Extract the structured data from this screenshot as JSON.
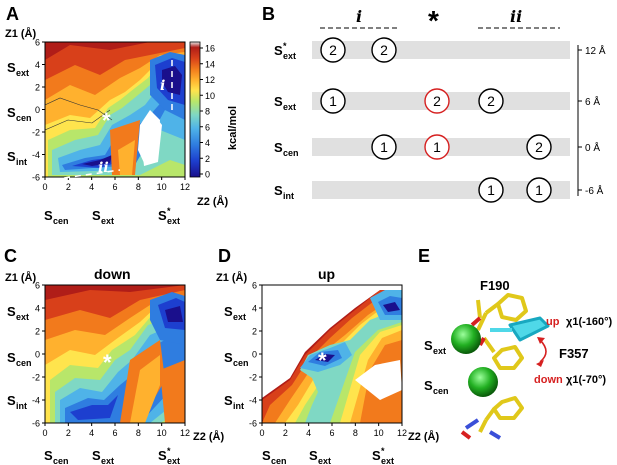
{
  "panels": {
    "A": {
      "letter": "A",
      "y_axis_label": "Z1 (Å)",
      "x_axis_label": "Z2 (Å)",
      "y_ticks": [
        "6",
        "4",
        "2",
        "0",
        "-2",
        "-4",
        "-6"
      ],
      "x_ticks": [
        "0",
        "2",
        "4",
        "6",
        "8",
        "10",
        "12"
      ],
      "site_labels_y": [
        {
          "main": "S",
          "sub": "ext"
        },
        {
          "main": "S",
          "sub": "cen"
        },
        {
          "main": "S",
          "sub": "int"
        }
      ],
      "site_labels_x": [
        {
          "main": "S",
          "sub": "cen",
          "sup": ""
        },
        {
          "main": "S",
          "sub": "ext",
          "sup": ""
        },
        {
          "main": "S",
          "sub": "ext",
          "sup": "*"
        }
      ],
      "markers": {
        "i": "i",
        "ii": "ii",
        "star": "*"
      },
      "colorbar": {
        "ticks": [
          "16",
          "14",
          "12",
          "10",
          "8",
          "6",
          "4",
          "2",
          "0"
        ],
        "unit": "kcal/mol",
        "colors": [
          "#1a0f8c",
          "#1d3fcf",
          "#2f7de0",
          "#4fb3e8",
          "#7fd8c4",
          "#b8e66a",
          "#ffe44d",
          "#ffb12e",
          "#f27a1c",
          "#d8401a",
          "#b01d18",
          "#e0e0e0"
        ]
      }
    },
    "B": {
      "letter": "B",
      "col_labels": {
        "i": "i",
        "star": "*",
        "ii": "ii"
      },
      "rows": [
        {
          "main": "S",
          "sub": "ext",
          "sup": "*",
          "scale": "12 Å"
        },
        {
          "main": "S",
          "sub": "ext",
          "sup": "",
          "scale": "6 Å"
        },
        {
          "main": "S",
          "sub": "cen",
          "sup": "",
          "scale": "0 Å"
        },
        {
          "main": "S",
          "sub": "int",
          "sup": "",
          "scale": "-6 Å"
        }
      ],
      "ions": [
        {
          "row": 0,
          "col": 0,
          "label": "2",
          "color": "#000000"
        },
        {
          "row": 0,
          "col": 1,
          "label": "2",
          "color": "#000000"
        },
        {
          "row": 1,
          "col": 0,
          "label": "1",
          "color": "#000000"
        },
        {
          "row": 1,
          "col": 2,
          "label": "2",
          "color": "#d62020"
        },
        {
          "row": 1,
          "col": 3,
          "label": "2",
          "color": "#000000"
        },
        {
          "row": 2,
          "col": 1,
          "label": "1",
          "color": "#000000"
        },
        {
          "row": 2,
          "col": 2,
          "label": "1",
          "color": "#d62020"
        },
        {
          "row": 2,
          "col": 4,
          "label": "2",
          "color": "#000000"
        },
        {
          "row": 3,
          "col": 3,
          "label": "1",
          "color": "#000000"
        },
        {
          "row": 3,
          "col": 4,
          "label": "1",
          "color": "#000000"
        }
      ]
    },
    "C": {
      "letter": "C",
      "title": "down",
      "y_axis_label": "Z1 (Å)",
      "x_axis_label": "Z2 (Å)",
      "y_ticks": [
        "6",
        "4",
        "2",
        "0",
        "-2",
        "-4",
        "-6"
      ],
      "x_ticks": [
        "0",
        "2",
        "4",
        "6",
        "8",
        "10",
        "12"
      ],
      "star": "*"
    },
    "D": {
      "letter": "D",
      "title": "up",
      "y_axis_label": "Z1 (Å)",
      "x_axis_label": "Z2 (Å)",
      "y_ticks": [
        "6",
        "4",
        "2",
        "0",
        "-2",
        "-4",
        "-6"
      ],
      "x_ticks": [
        "0",
        "2",
        "4",
        "6",
        "8",
        "10",
        "12"
      ],
      "star": "*"
    },
    "E": {
      "letter": "E",
      "residue_top": "F190",
      "residue_mid": "F357",
      "up_label": "up",
      "up_angle": "χ1(-160°)",
      "down_label": "down",
      "down_angle": "χ1(-70°)",
      "site_ext": {
        "main": "S",
        "sub": "ext"
      },
      "site_cen": {
        "main": "S",
        "sub": "cen"
      }
    }
  }
}
